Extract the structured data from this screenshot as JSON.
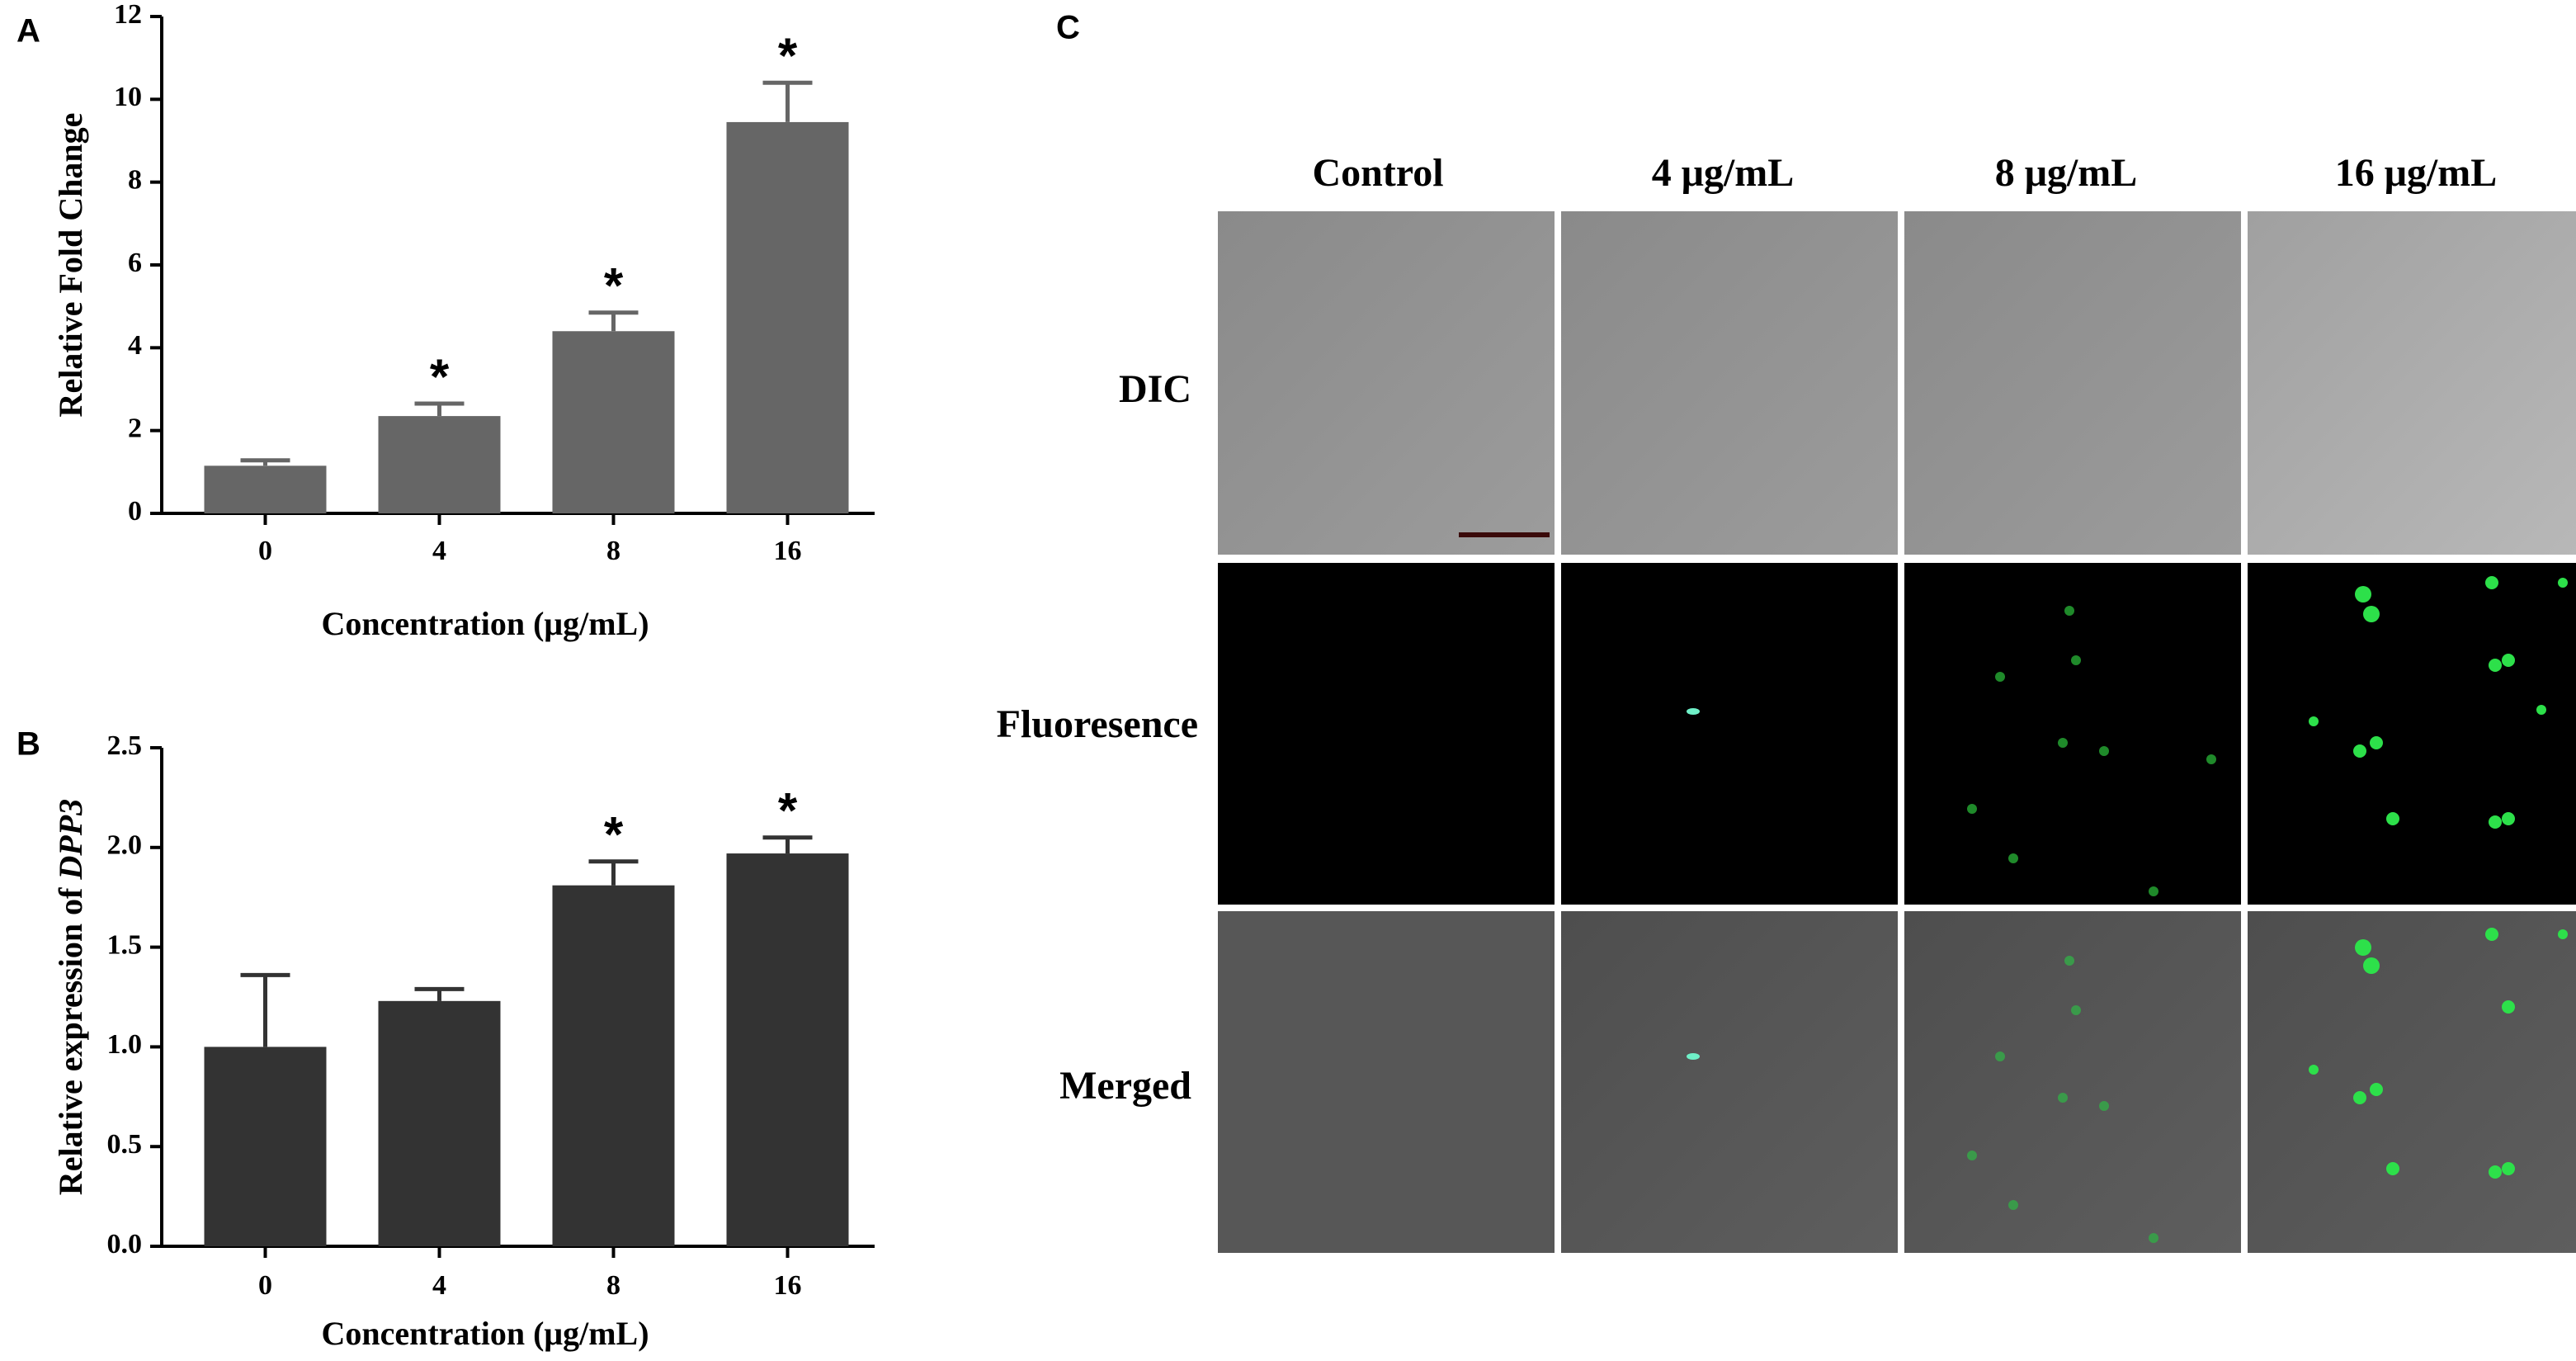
{
  "chart_data": [
    {
      "type": "bar",
      "panel": "A",
      "categories": [
        "0",
        "4",
        "8",
        "16"
      ],
      "values": [
        1.15,
        2.35,
        4.4,
        9.45
      ],
      "errors": [
        0.13,
        0.3,
        0.45,
        0.95
      ],
      "significance": [
        null,
        "*",
        "*",
        "*"
      ],
      "color": "#666666",
      "ylabel": "Relative Fold Change",
      "xlabel": "Concentration (μg/mL)",
      "ylim": [
        0,
        12
      ],
      "yticks": [
        0,
        2,
        4,
        6,
        8,
        10,
        12
      ]
    },
    {
      "type": "bar",
      "panel": "B",
      "categories": [
        "0",
        "4",
        "8",
        "16"
      ],
      "values": [
        1.0,
        1.23,
        1.81,
        1.97
      ],
      "errors": [
        0.36,
        0.06,
        0.12,
        0.08
      ],
      "significance": [
        null,
        null,
        "*",
        "*"
      ],
      "color": "#333333",
      "ylabel": "Relative expression of ",
      "ylabel_italic": "DPP3",
      "xlabel": "Concentration (μg/mL)",
      "ylim": [
        0,
        2.5
      ],
      "yticks": [
        {
          "value": 0,
          "label": "0.0"
        },
        0.5,
        {
          "value": 1,
          "label": "1.0"
        },
        1.5,
        {
          "value": 2,
          "label": "2.0"
        },
        2.5
      ]
    }
  ],
  "panel_c": {
    "panel": "C",
    "columns": [
      "Control",
      "4 μg/mL",
      "8 μg/mL",
      "16 μg/mL"
    ],
    "rows": [
      "DIC",
      "Fluoresence",
      "Merged"
    ]
  }
}
